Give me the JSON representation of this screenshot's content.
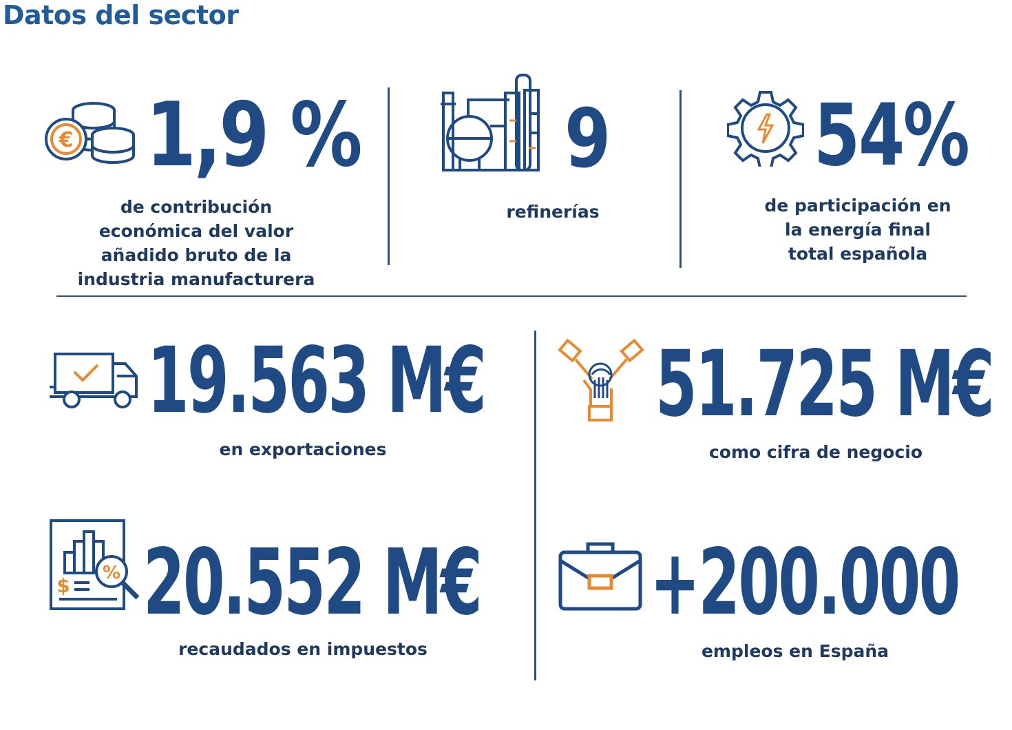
{
  "title": "Datos del sector",
  "colors": {
    "primary": "#1F4A84",
    "accent": "#E88A30",
    "title": "#1F5C99"
  },
  "stats": {
    "contribucion": {
      "value": "1,9 %",
      "label_lines": [
        "de contribución",
        "económica del valor",
        "añadido bruto de la",
        "industria manufacturera"
      ],
      "icon": "coins-euro-icon"
    },
    "refinerias": {
      "value": "9",
      "label_lines": [
        "refinerías"
      ],
      "icon": "refinery-icon"
    },
    "participacion": {
      "value": "54%",
      "label_lines": [
        "de participación en",
        "la energía final",
        "total española"
      ],
      "icon": "gear-lightning-icon"
    },
    "exportaciones": {
      "value": "19.563 M€",
      "label_lines": [
        "en exportaciones"
      ],
      "icon": "delivery-truck-icon"
    },
    "negocio": {
      "value": "51.725 M€",
      "label_lines": [
        "como cifra de negocio"
      ],
      "icon": "handshake-icon"
    },
    "impuestos": {
      "value": "20.552 M€",
      "label_lines": [
        "recaudados en impuestos"
      ],
      "icon": "tax-report-icon"
    },
    "empleos": {
      "value": "+200.000",
      "label_lines": [
        "empleos en España"
      ],
      "icon": "briefcase-icon"
    }
  }
}
